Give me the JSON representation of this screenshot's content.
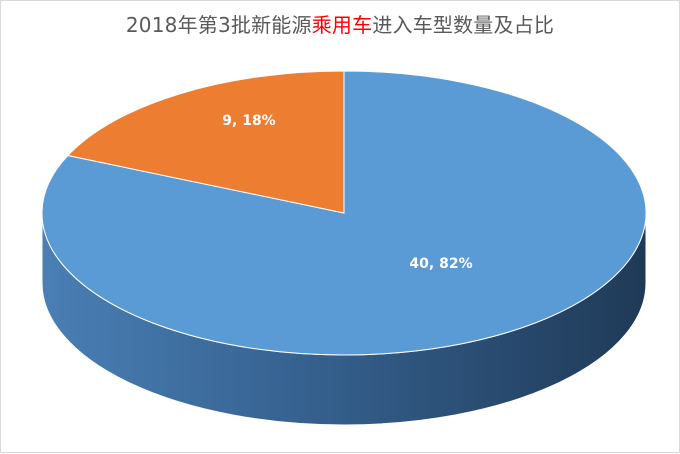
{
  "title": {
    "before": "2018年第3批新能源",
    "highlight": "乘用车",
    "after": "进入车型数量及占比"
  },
  "chart_data": {
    "type": "pie",
    "title": "2018年第3批新能源乘用车进入车型数量及占比",
    "style": "3d",
    "slices": [
      {
        "value": 40,
        "percent": 82,
        "label": "40, 82%",
        "color": "#5b9bd5"
      },
      {
        "value": 9,
        "percent": 18,
        "label": "9, 18%",
        "color": "#ed7d31"
      }
    ],
    "legend": "none"
  }
}
